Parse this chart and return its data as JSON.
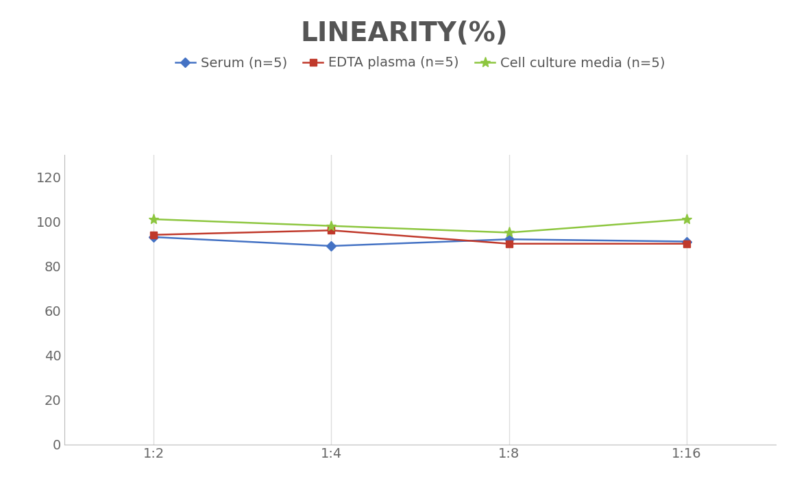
{
  "title": "LINEARITY(%)",
  "title_fontsize": 28,
  "title_fontweight": "bold",
  "title_color": "#555555",
  "x_labels": [
    "1:2",
    "1:4",
    "1:8",
    "1:16"
  ],
  "x_positions": [
    0,
    1,
    2,
    3
  ],
  "series": [
    {
      "label": "Serum (n=5)",
      "values": [
        93,
        89,
        92,
        91
      ],
      "color": "#4472C4",
      "marker": "D",
      "markersize": 7,
      "linewidth": 1.8
    },
    {
      "label": "EDTA plasma (n=5)",
      "values": [
        94,
        96,
        90,
        90
      ],
      "color": "#C0392B",
      "marker": "s",
      "markersize": 7,
      "linewidth": 1.8
    },
    {
      "label": "Cell culture media (n=5)",
      "values": [
        101,
        98,
        95,
        101
      ],
      "color": "#8DC63F",
      "marker": "*",
      "markersize": 11,
      "linewidth": 1.8
    }
  ],
  "ylim": [
    0,
    130
  ],
  "yticks": [
    0,
    20,
    40,
    60,
    80,
    100,
    120
  ],
  "grid_color": "#DDDDDD",
  "background_color": "#FFFFFF",
  "legend_fontsize": 14,
  "axis_tick_fontsize": 14,
  "tick_color": "#666666"
}
